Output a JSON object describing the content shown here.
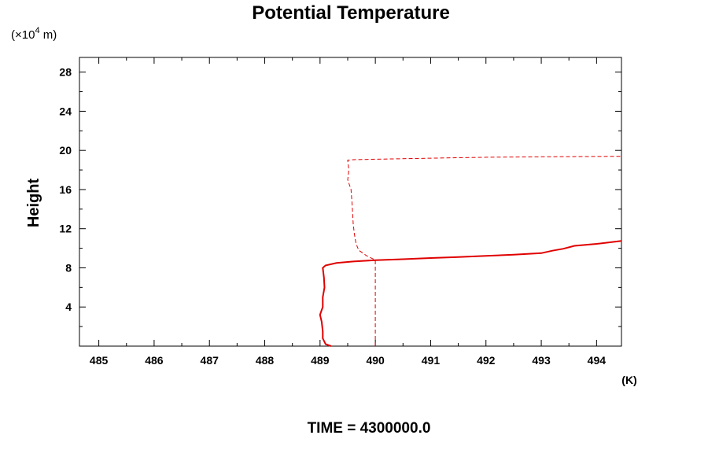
{
  "chart_data": {
    "type": "line",
    "title": "Potential Temperature",
    "y_unit_prefix": "(×10",
    "y_unit_exp": "4",
    "y_unit_suffix": " m)",
    "xlabel": "(K)",
    "ylabel": "Height",
    "footer": "TIME = 4300000.0",
    "xlim": [
      484.65,
      494.45
    ],
    "ylim": [
      0,
      29.5
    ],
    "x_major_ticks": [
      485,
      486,
      487,
      488,
      489,
      490,
      491,
      492,
      493,
      494
    ],
    "y_major_ticks": [
      4,
      8,
      12,
      16,
      20,
      24,
      28
    ],
    "x_tick_labels": [
      "485",
      "486",
      "487",
      "488",
      "489",
      "490",
      "491",
      "492",
      "493",
      "494"
    ],
    "y_tick_labels": [
      "4",
      "8",
      "12",
      "16",
      "20",
      "24",
      "28"
    ],
    "colors": {
      "series": "#e00000",
      "axis": "#000000"
    },
    "series": [
      {
        "style": "solid",
        "points": [
          [
            489.2,
            0.0
          ],
          [
            489.1,
            0.2
          ],
          [
            489.05,
            0.8
          ],
          [
            489.05,
            1.5
          ],
          [
            489.03,
            2.5
          ],
          [
            489.0,
            3.2
          ],
          [
            489.05,
            4.0
          ],
          [
            489.05,
            5.0
          ],
          [
            489.08,
            6.0
          ],
          [
            489.07,
            7.0
          ],
          [
            489.05,
            8.0
          ],
          [
            489.1,
            8.25
          ],
          [
            489.3,
            8.5
          ],
          [
            489.6,
            8.65
          ],
          [
            490.0,
            8.78
          ],
          [
            490.5,
            8.88
          ],
          [
            491.0,
            9.0
          ],
          [
            491.5,
            9.1
          ],
          [
            492.0,
            9.22
          ],
          [
            492.5,
            9.35
          ],
          [
            493.0,
            9.5
          ],
          [
            493.2,
            9.75
          ],
          [
            493.4,
            9.95
          ],
          [
            493.6,
            10.25
          ],
          [
            494.0,
            10.45
          ],
          [
            494.45,
            10.75
          ]
        ]
      },
      {
        "style": "dashed",
        "points": [
          [
            490.0,
            0.0
          ],
          [
            490.0,
            8.8
          ],
          [
            489.85,
            9.2
          ],
          [
            489.7,
            9.8
          ],
          [
            489.65,
            10.5
          ],
          [
            489.62,
            11.5
          ],
          [
            489.6,
            12.5
          ],
          [
            489.58,
            14.5
          ],
          [
            489.56,
            16.0
          ],
          [
            489.5,
            17.0
          ],
          [
            489.52,
            18.0
          ],
          [
            489.5,
            19.0
          ],
          [
            489.6,
            19.05
          ],
          [
            490.0,
            19.1
          ],
          [
            491.0,
            19.2
          ],
          [
            492.0,
            19.3
          ],
          [
            493.0,
            19.35
          ],
          [
            494.45,
            19.4
          ]
        ]
      }
    ]
  }
}
